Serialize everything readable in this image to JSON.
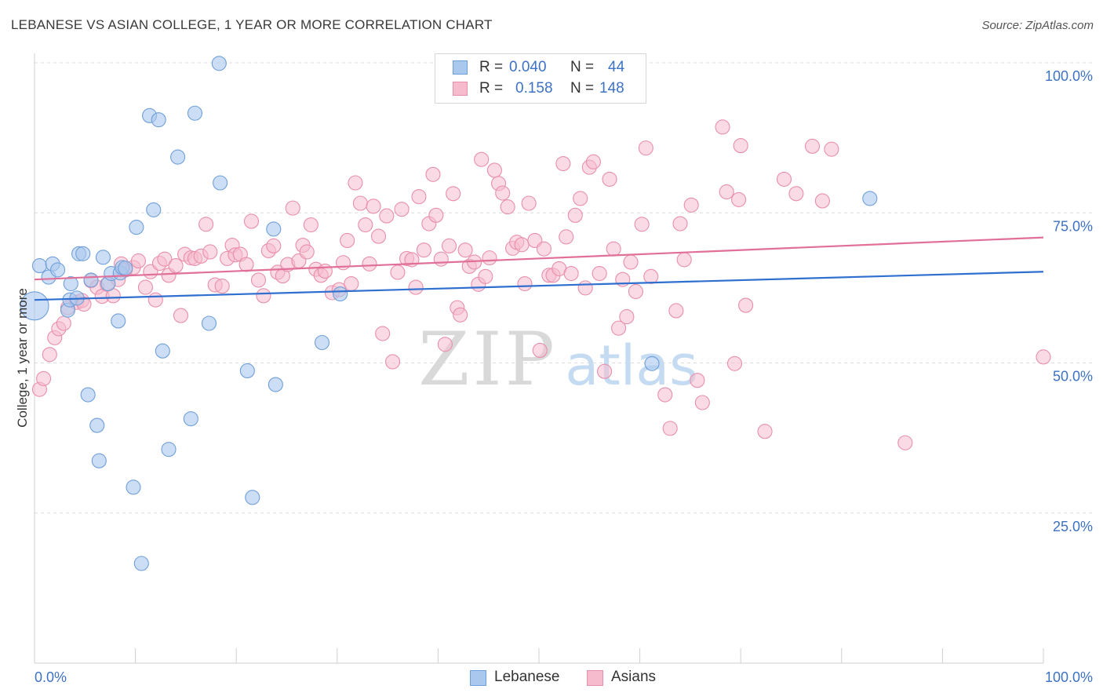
{
  "title": "LEBANESE VS ASIAN COLLEGE, 1 YEAR OR MORE CORRELATION CHART",
  "source": "Source: ZipAtlas.com",
  "watermark": {
    "zip": "ZIP",
    "atlas": "atlas"
  },
  "colors": {
    "lebanese_fill": "#aac8ee",
    "lebanese_stroke": "#6f9fd8",
    "lebanese_line": "#2f6fcf",
    "asian_fill": "#f6bccd",
    "asian_stroke": "#e88fab",
    "asian_line": "#e07099",
    "tick_label": "#3d72c4",
    "grid": "#dcdcdc"
  },
  "legend": {
    "rows": [
      {
        "r_label": "R =",
        "r_value": "0.040",
        "n_label": "N =",
        "n_value": "44"
      },
      {
        "r_label": "R =",
        "r_value": "0.158",
        "n_label": "N =",
        "n_value": "148"
      }
    ]
  },
  "bottom_legend": {
    "lebanese": "Lebanese",
    "asians": "Asians"
  },
  "chart_data": {
    "type": "scatter",
    "ylabel": "College, 1 year or more",
    "xlim": [
      0,
      100
    ],
    "ylim": [
      0,
      100
    ],
    "x_tick_labels": [
      "0.0%",
      "100.0%"
    ],
    "y_ticks": [
      25,
      50,
      75,
      100
    ],
    "y_tick_labels": [
      "25.0%",
      "50.0%",
      "75.0%",
      "100.0%"
    ],
    "grid": true,
    "legend_placement": "top-center",
    "series": [
      {
        "name": "Lebanese",
        "trend": {
          "x": [
            0,
            100
          ],
          "y": [
            60.5,
            65.2
          ]
        },
        "points": [
          [
            0.0,
            59.5,
            18
          ],
          [
            0.5,
            66.2,
            9
          ],
          [
            1.4,
            64.3,
            9
          ],
          [
            1.8,
            66.5,
            9
          ],
          [
            2.3,
            65.5,
            9
          ],
          [
            3.3,
            58.8,
            9
          ],
          [
            3.5,
            60.5,
            9
          ],
          [
            3.6,
            63.2,
            9
          ],
          [
            4.2,
            60.8,
            9
          ],
          [
            4.4,
            68.2,
            9
          ],
          [
            4.8,
            68.2,
            9
          ],
          [
            5.3,
            44.7,
            9
          ],
          [
            5.6,
            63.8,
            9
          ],
          [
            6.2,
            39.6,
            9
          ],
          [
            6.4,
            33.7,
            9
          ],
          [
            6.8,
            67.6,
            9
          ],
          [
            7.3,
            63.2,
            9
          ],
          [
            7.6,
            64.9,
            9
          ],
          [
            8.3,
            57.0,
            9
          ],
          [
            8.5,
            65.0,
            9
          ],
          [
            8.7,
            65.9,
            9
          ],
          [
            9.8,
            29.3,
            9
          ],
          [
            10.1,
            72.6,
            9
          ],
          [
            10.6,
            16.6,
            9
          ],
          [
            11.4,
            91.2,
            9
          ],
          [
            11.8,
            75.5,
            9
          ],
          [
            12.3,
            90.5,
            9
          ],
          [
            12.7,
            52.0,
            9
          ],
          [
            13.3,
            35.6,
            9
          ],
          [
            14.2,
            84.3,
            9
          ],
          [
            15.5,
            40.7,
            9
          ],
          [
            15.9,
            91.6,
            9
          ],
          [
            17.3,
            56.6,
            9
          ],
          [
            18.3,
            99.9,
            9
          ],
          [
            18.4,
            80.0,
            9
          ],
          [
            21.1,
            48.7,
            9
          ],
          [
            21.6,
            27.6,
            9
          ],
          [
            23.7,
            72.3,
            9
          ],
          [
            23.9,
            46.4,
            9
          ],
          [
            28.5,
            53.4,
            9
          ],
          [
            30.3,
            61.5,
            9
          ],
          [
            61.2,
            49.9,
            9
          ],
          [
            82.8,
            77.4,
            9
          ],
          [
            9.0,
            65.8,
            9
          ]
        ]
      },
      {
        "name": "Asians",
        "trend": {
          "x": [
            0,
            100
          ],
          "y": [
            63.9,
            70.9
          ]
        },
        "points": [
          [
            0.5,
            45.6
          ],
          [
            0.9,
            47.4
          ],
          [
            1.5,
            51.4
          ],
          [
            2.0,
            54.2
          ],
          [
            2.4,
            55.7
          ],
          [
            2.9,
            56.6
          ],
          [
            3.3,
            59.2
          ],
          [
            4.2,
            60.1
          ],
          [
            4.7,
            60.4
          ],
          [
            4.9,
            59.8
          ],
          [
            5.6,
            63.7
          ],
          [
            6.2,
            62.6
          ],
          [
            6.7,
            61.1
          ],
          [
            7.2,
            63.1
          ],
          [
            7.8,
            61.2
          ],
          [
            8.3,
            63.9
          ],
          [
            8.6,
            66.5
          ],
          [
            9.0,
            65.5
          ],
          [
            9.8,
            65.9
          ],
          [
            10.3,
            67.0
          ],
          [
            11.0,
            62.6
          ],
          [
            11.5,
            65.2
          ],
          [
            12.0,
            60.5
          ],
          [
            12.4,
            66.6
          ],
          [
            12.9,
            67.3
          ],
          [
            13.3,
            64.6
          ],
          [
            14.0,
            66.2
          ],
          [
            14.5,
            57.9
          ],
          [
            14.9,
            68.1
          ],
          [
            15.5,
            67.5
          ],
          [
            15.9,
            67.4
          ],
          [
            16.5,
            67.8
          ],
          [
            17.0,
            73.1
          ],
          [
            17.4,
            68.5
          ],
          [
            17.9,
            63.0
          ],
          [
            18.6,
            62.8
          ],
          [
            19.1,
            67.4
          ],
          [
            19.6,
            69.6
          ],
          [
            19.9,
            68.0
          ],
          [
            20.4,
            68.1
          ],
          [
            21.0,
            66.4
          ],
          [
            21.5,
            73.6
          ],
          [
            22.2,
            63.8
          ],
          [
            22.7,
            61.2
          ],
          [
            23.2,
            68.7
          ],
          [
            23.7,
            69.5
          ],
          [
            24.1,
            65.1
          ],
          [
            24.6,
            64.5
          ],
          [
            25.1,
            66.4
          ],
          [
            25.6,
            75.8
          ],
          [
            26.2,
            67.0
          ],
          [
            26.6,
            69.6
          ],
          [
            27.0,
            68.5
          ],
          [
            27.4,
            73.0
          ],
          [
            27.9,
            65.6
          ],
          [
            28.4,
            64.6
          ],
          [
            28.8,
            65.3
          ],
          [
            29.5,
            61.7
          ],
          [
            30.2,
            62.2
          ],
          [
            30.6,
            66.7
          ],
          [
            31.0,
            70.4
          ],
          [
            31.4,
            63.2
          ],
          [
            31.8,
            80.0
          ],
          [
            32.3,
            76.6
          ],
          [
            32.8,
            73.0
          ],
          [
            33.2,
            66.5
          ],
          [
            33.6,
            76.1
          ],
          [
            34.1,
            71.1
          ],
          [
            34.5,
            54.9
          ],
          [
            34.9,
            74.5
          ],
          [
            35.5,
            50.2
          ],
          [
            36.0,
            65.1
          ],
          [
            36.4,
            75.6
          ],
          [
            36.9,
            67.4
          ],
          [
            37.4,
            67.2
          ],
          [
            37.8,
            62.6
          ],
          [
            38.1,
            77.7
          ],
          [
            38.6,
            68.8
          ],
          [
            39.1,
            73.2
          ],
          [
            39.5,
            81.4
          ],
          [
            39.8,
            74.6
          ],
          [
            40.3,
            67.3
          ],
          [
            40.7,
            53.1
          ],
          [
            41.1,
            69.5
          ],
          [
            41.5,
            78.2
          ],
          [
            41.9,
            59.2
          ],
          [
            42.2,
            58.0
          ],
          [
            42.7,
            68.8
          ],
          [
            43.1,
            66.1
          ],
          [
            43.6,
            66.8
          ],
          [
            44.0,
            63.1
          ],
          [
            44.3,
            83.9
          ],
          [
            44.7,
            64.4
          ],
          [
            45.1,
            67.5
          ],
          [
            45.6,
            82.1
          ],
          [
            46.0,
            79.9
          ],
          [
            46.4,
            78.3
          ],
          [
            46.9,
            76.0
          ],
          [
            47.4,
            69.1
          ],
          [
            47.8,
            70.1
          ],
          [
            48.3,
            69.7
          ],
          [
            48.6,
            63.2
          ],
          [
            49.0,
            76.6
          ],
          [
            49.6,
            70.4
          ],
          [
            50.1,
            52.1
          ],
          [
            50.5,
            69.0
          ],
          [
            51.0,
            64.6
          ],
          [
            51.4,
            64.6
          ],
          [
            52.0,
            65.7
          ],
          [
            52.4,
            83.2
          ],
          [
            52.7,
            71.0
          ],
          [
            53.2,
            64.9
          ],
          [
            53.6,
            74.6
          ],
          [
            54.1,
            77.4
          ],
          [
            54.6,
            62.5
          ],
          [
            55.0,
            82.6
          ],
          [
            55.4,
            83.5
          ],
          [
            56.0,
            64.9
          ],
          [
            56.5,
            48.6
          ],
          [
            57.0,
            80.6
          ],
          [
            57.4,
            69.0
          ],
          [
            57.9,
            55.8
          ],
          [
            58.3,
            63.9
          ],
          [
            58.7,
            57.7
          ],
          [
            59.1,
            66.8
          ],
          [
            59.6,
            61.9
          ],
          [
            60.2,
            73.1
          ],
          [
            60.6,
            85.8
          ],
          [
            61.1,
            64.4
          ],
          [
            62.5,
            44.7
          ],
          [
            63.0,
            39.1
          ],
          [
            63.6,
            58.7
          ],
          [
            64.0,
            73.2
          ],
          [
            64.4,
            67.2
          ],
          [
            65.1,
            76.3
          ],
          [
            65.7,
            47.1
          ],
          [
            66.2,
            43.4
          ],
          [
            68.2,
            89.3
          ],
          [
            68.6,
            78.5
          ],
          [
            69.4,
            49.9
          ],
          [
            69.8,
            77.2
          ],
          [
            70.0,
            86.2
          ],
          [
            70.5,
            59.6
          ],
          [
            72.4,
            38.6
          ],
          [
            74.3,
            80.6
          ],
          [
            75.5,
            78.2
          ],
          [
            77.1,
            86.1
          ],
          [
            78.1,
            77.0
          ],
          [
            79.0,
            85.6
          ],
          [
            86.3,
            36.7
          ],
          [
            100.0,
            51.0
          ]
        ]
      }
    ]
  }
}
